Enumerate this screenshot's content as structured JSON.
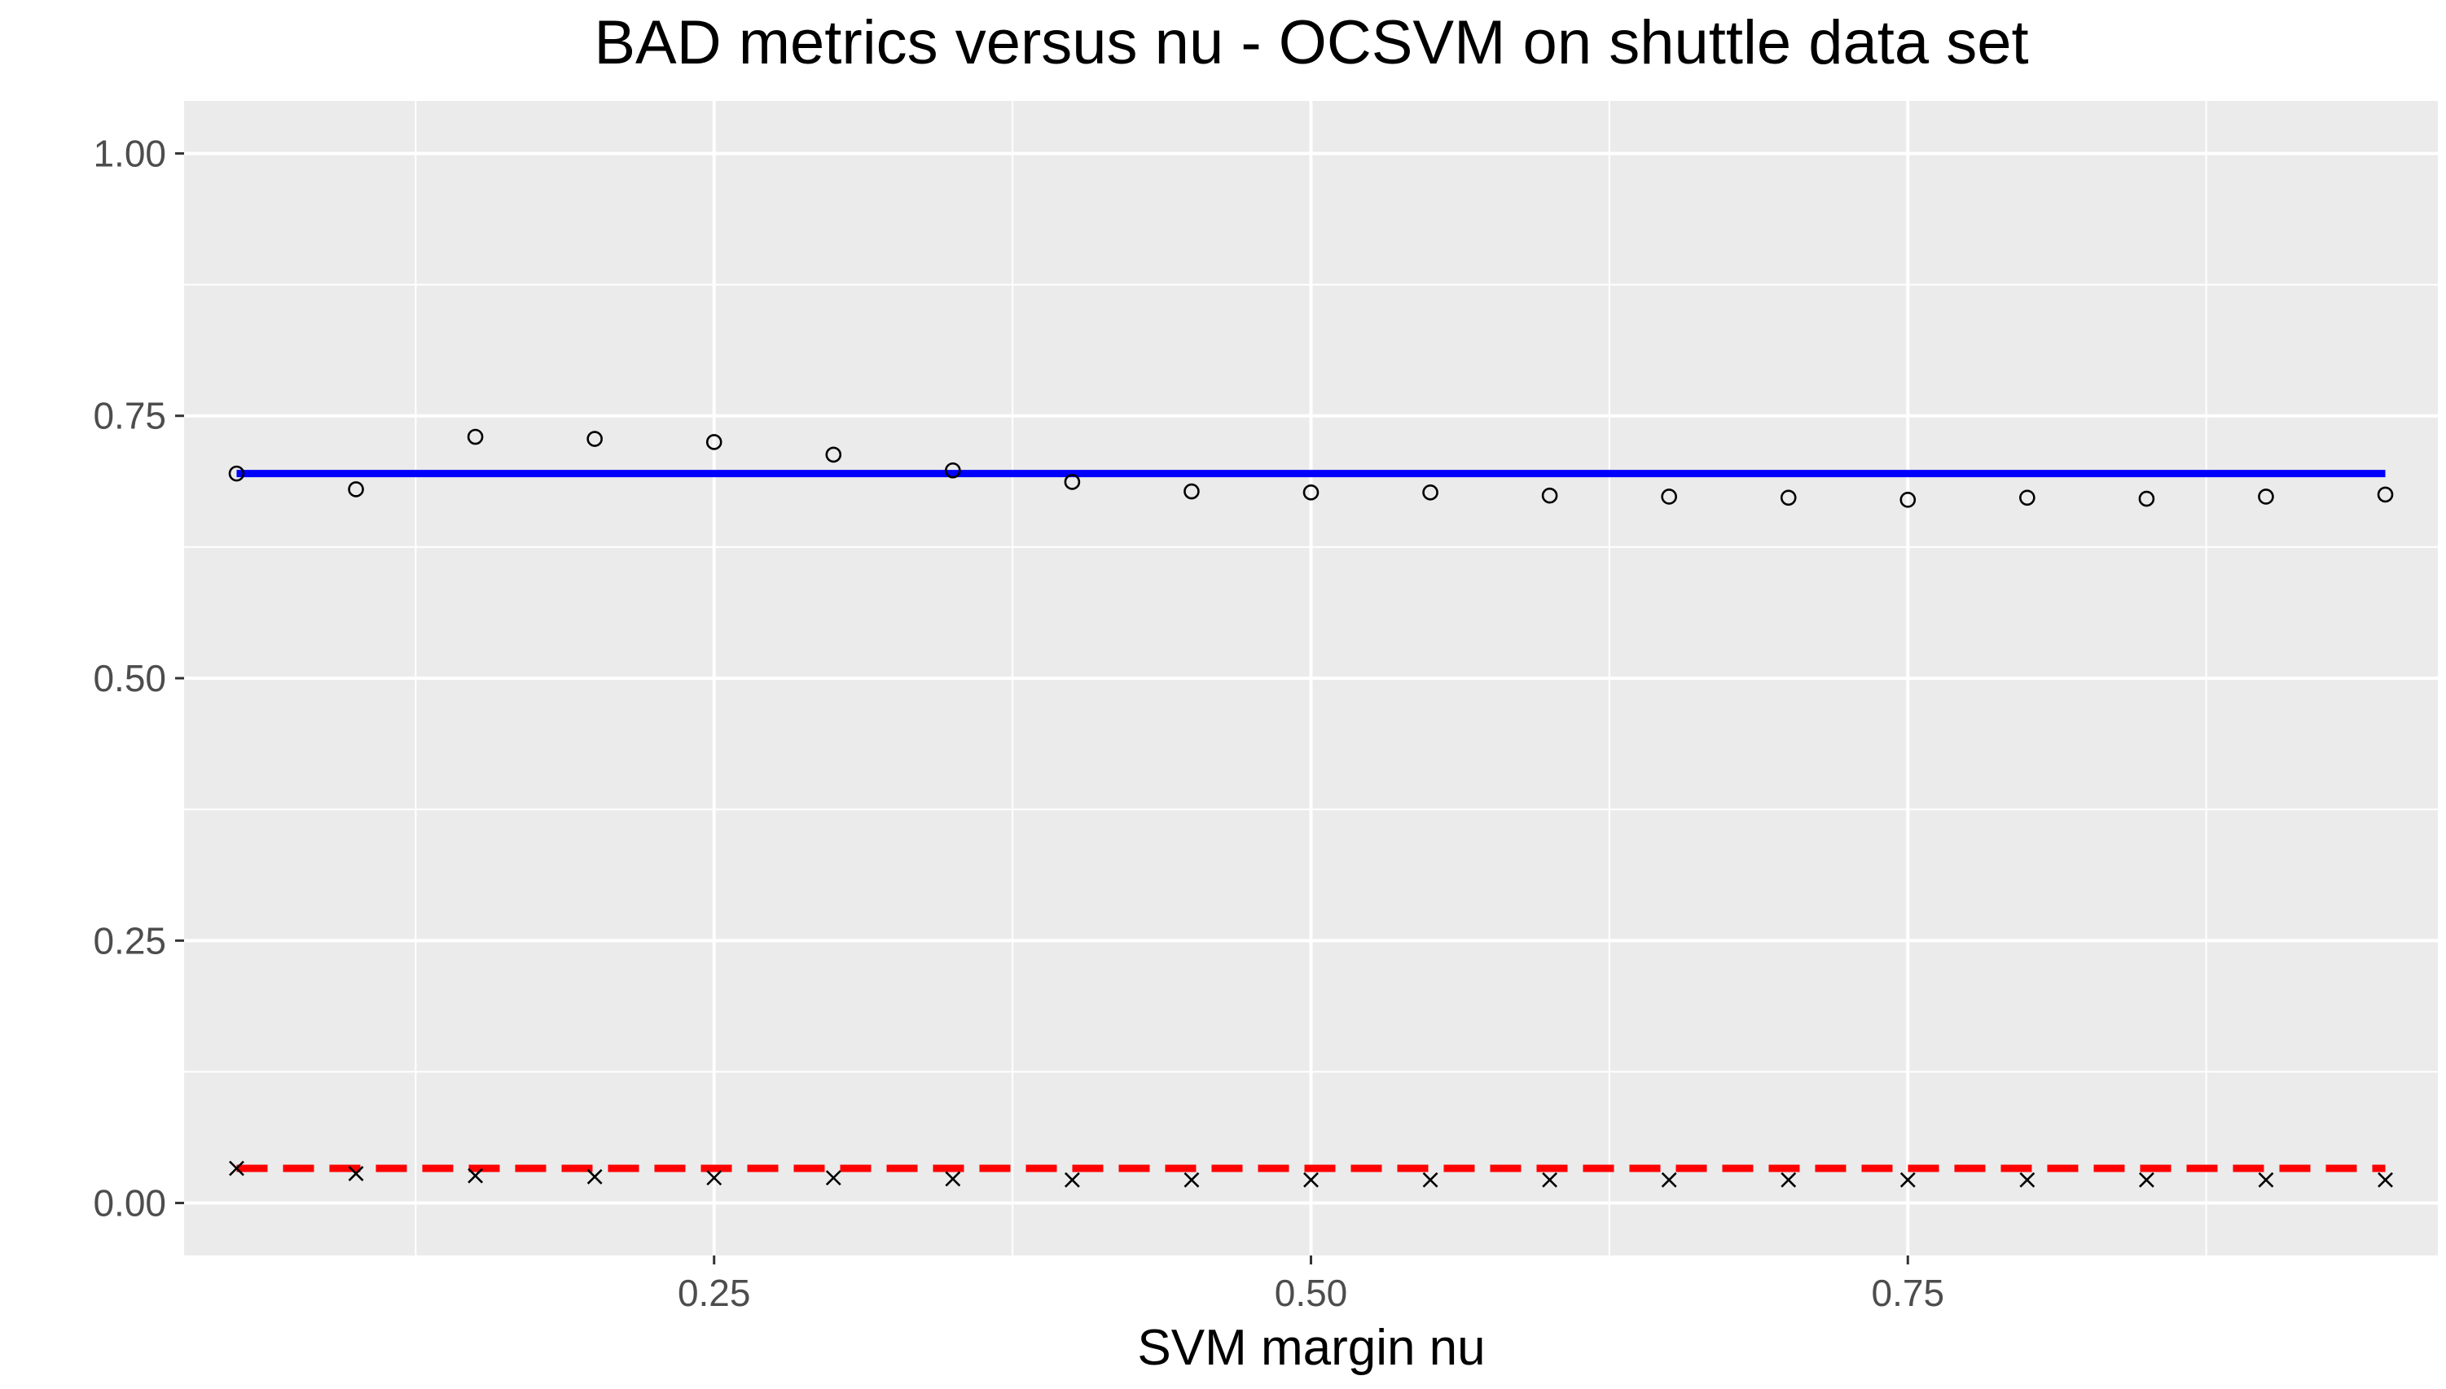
{
  "chart_data": {
    "type": "scatter",
    "title": "BAD metrics versus nu - OCSVM on shuttle data set",
    "xlabel": "SVM margin nu",
    "ylabel": "",
    "xlim": [
      0.028,
      0.972
    ],
    "ylim": [
      -0.05,
      1.05
    ],
    "x_ticks": [
      0.25,
      0.5,
      0.75
    ],
    "x_tick_labels": [
      "0.25",
      "0.50",
      "0.75"
    ],
    "x_minor_grid": [
      0.125,
      0.375,
      0.625,
      0.875
    ],
    "y_ticks": [
      0,
      0.25,
      0.5,
      0.75,
      1
    ],
    "y_tick_labels": [
      "0.00",
      "0.25",
      "0.50",
      "0.75",
      "1.00"
    ],
    "y_minor_grid": [
      0.125,
      0.375,
      0.625,
      0.875
    ],
    "grid": true,
    "panel_background": "#ebebeb",
    "grid_color": "#ffffff",
    "x": [
      0.05,
      0.1,
      0.15,
      0.2,
      0.25,
      0.3,
      0.35,
      0.4,
      0.45,
      0.5,
      0.55,
      0.6,
      0.65,
      0.7,
      0.75,
      0.8,
      0.85,
      0.9,
      0.95
    ],
    "series": [
      {
        "marker": "circle",
        "color": "#000000",
        "values": [
          0.695,
          0.68,
          0.73,
          0.728,
          0.725,
          0.713,
          0.698,
          0.687,
          0.678,
          0.677,
          0.677,
          0.674,
          0.673,
          0.672,
          0.67,
          0.672,
          0.671,
          0.673,
          0.675
        ]
      },
      {
        "marker": "cross",
        "color": "#000000",
        "values": [
          0.033,
          0.028,
          0.026,
          0.025,
          0.024,
          0.024,
          0.023,
          0.022,
          0.022,
          0.022,
          0.022,
          0.022,
          0.022,
          0.022,
          0.022,
          0.022,
          0.022,
          0.022,
          0.022
        ]
      }
    ],
    "reference_lines": [
      {
        "y": 0.695,
        "x_range": [
          0.05,
          0.95
        ],
        "color": "#0000ff",
        "style": "solid"
      },
      {
        "y": 0.033,
        "x_range": [
          0.05,
          0.95
        ],
        "color": "#ff0000",
        "style": "dashed"
      }
    ]
  }
}
